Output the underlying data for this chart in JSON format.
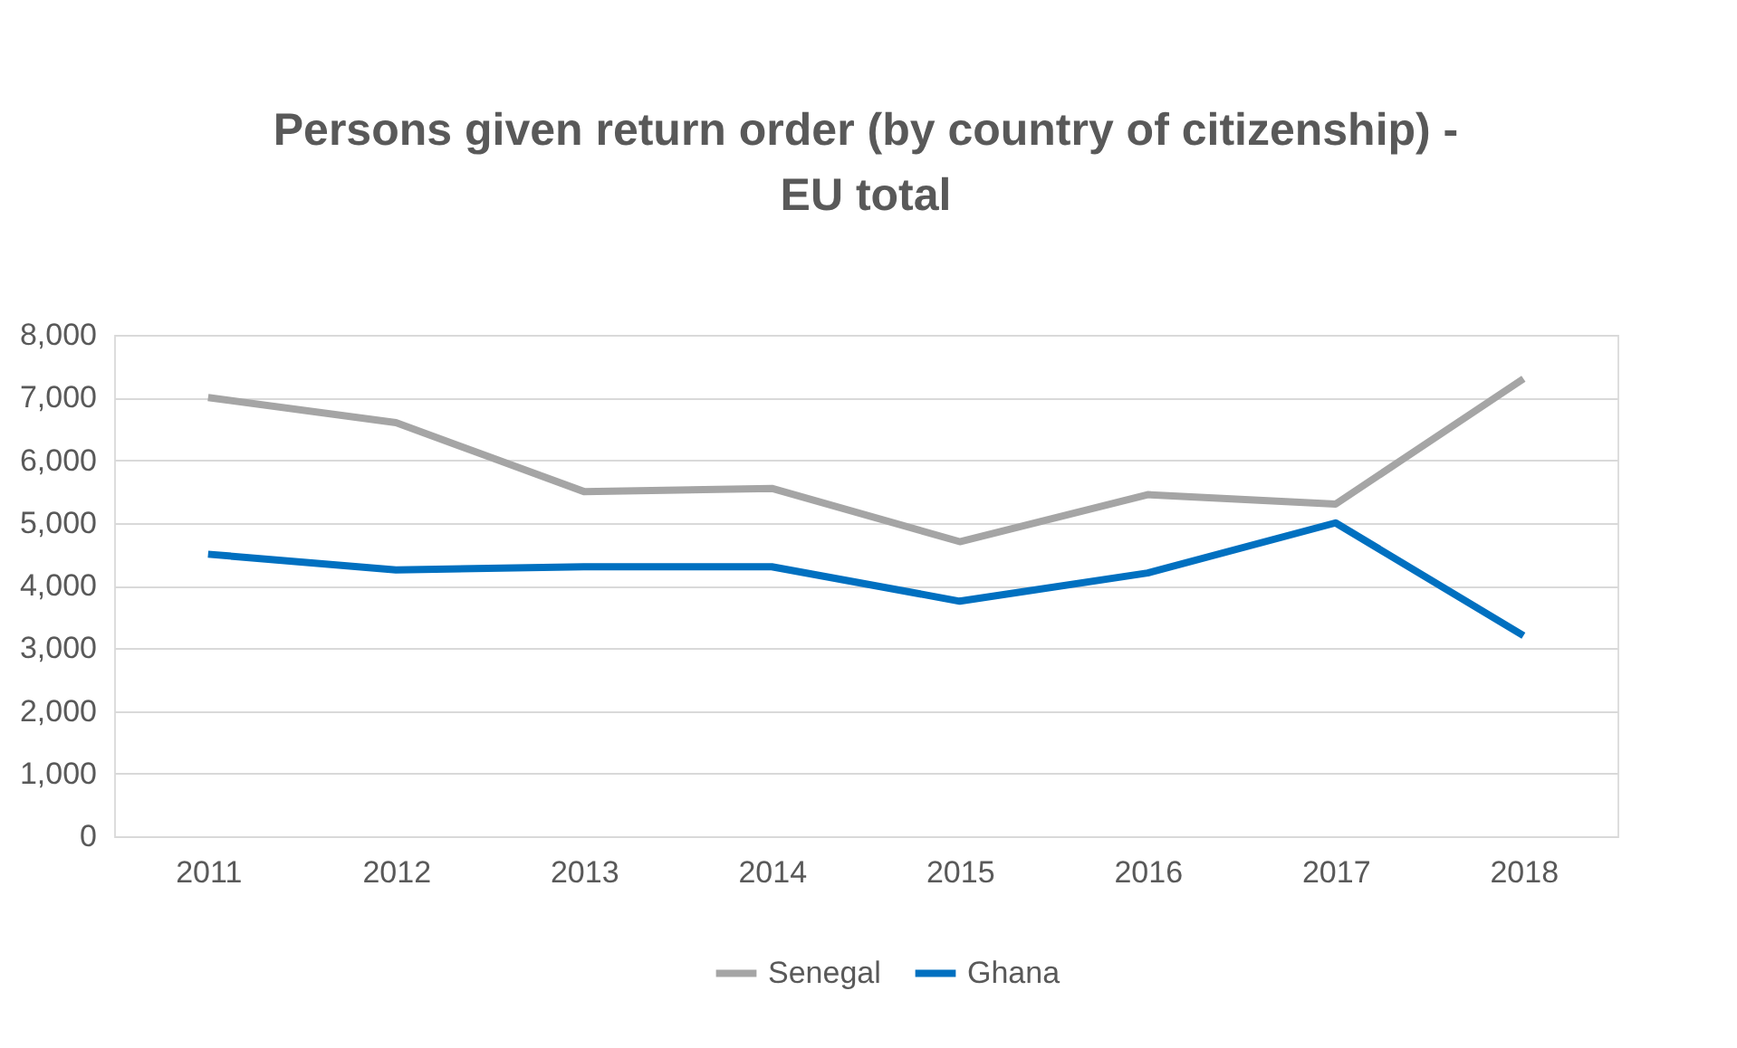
{
  "chart_data": {
    "type": "line",
    "title": "Persons given return order (by country of citizenship) - EU total",
    "categories": [
      "2011",
      "2012",
      "2013",
      "2014",
      "2015",
      "2016",
      "2017",
      "2018"
    ],
    "series": [
      {
        "name": "Senegal",
        "color": "#a5a5a5",
        "values": [
          7000,
          6600,
          5500,
          5550,
          4700,
          5450,
          5300,
          7300
        ]
      },
      {
        "name": "Ghana",
        "color": "#0070c0",
        "values": [
          4500,
          4250,
          4300,
          4300,
          3750,
          4200,
          5000,
          3200
        ]
      }
    ],
    "ylim": [
      0,
      8000
    ],
    "yticks": [
      0,
      {
        "value": 1000,
        "label": "1,000"
      },
      {
        "value": 2000,
        "label": "2,000"
      },
      {
        "value": 3000,
        "label": "3,000"
      },
      {
        "value": 4000,
        "label": "4,000"
      },
      {
        "value": 5000,
        "label": "5,000"
      },
      {
        "value": 6000,
        "label": "6,000"
      },
      {
        "value": 7000,
        "label": "7,000"
      },
      {
        "value": 8000,
        "label": "8,000"
      }
    ],
    "grid": "y",
    "legend": "bottom",
    "marker": "none",
    "line_style": "solid"
  }
}
